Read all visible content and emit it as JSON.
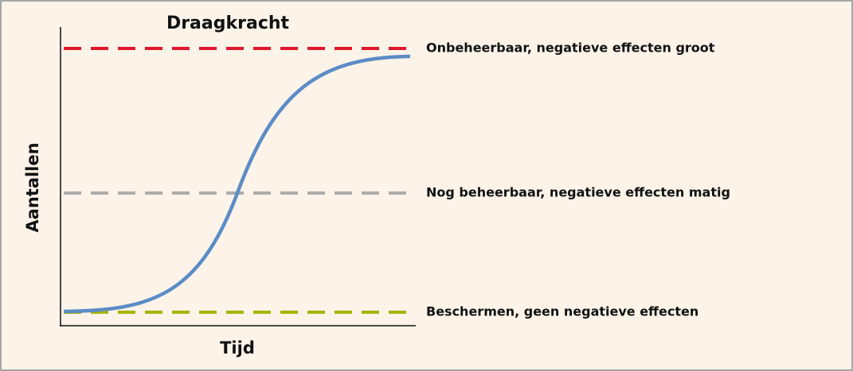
{
  "title": "Draagkracht",
  "y_axis_label": "Aantallen",
  "x_axis_label": "Tijd",
  "levels": [
    {
      "label": "Onbeheerbaar, negatieve effecten groot",
      "color": "#e1182c"
    },
    {
      "label": "Nog beheerbaar, negatieve effecten matig",
      "color": "#acacac"
    },
    {
      "label": "Beschermen, geen negatieve effecten",
      "color": "#a9b400"
    }
  ]
}
